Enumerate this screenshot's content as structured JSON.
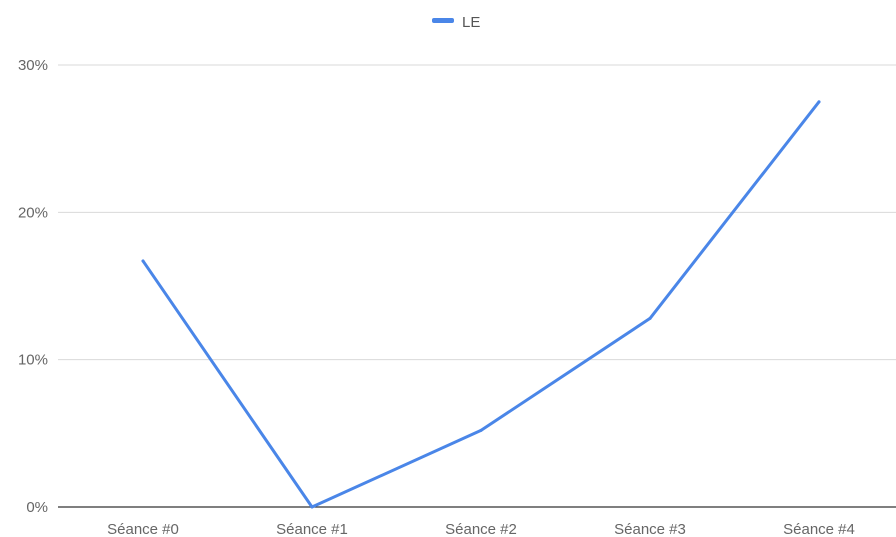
{
  "chart_data": {
    "type": "line",
    "categories": [
      "Séance #0",
      "Séance #1",
      "Séance #2",
      "Séance #3",
      "Séance #4"
    ],
    "series": [
      {
        "name": "LE",
        "values": [
          16.7,
          0,
          5.2,
          12.8,
          27.5
        ],
        "color": "#4a86e8"
      }
    ],
    "yticks": [
      {
        "value": 0,
        "label": "0%"
      },
      {
        "value": 10,
        "label": "10%"
      },
      {
        "value": 20,
        "label": "20%"
      },
      {
        "value": 30,
        "label": "30%"
      }
    ],
    "ylim": [
      0,
      30
    ],
    "grid": true,
    "legend_position": "top-center",
    "gridline_color": "#d9d9d9",
    "axis_color": "#333333"
  }
}
